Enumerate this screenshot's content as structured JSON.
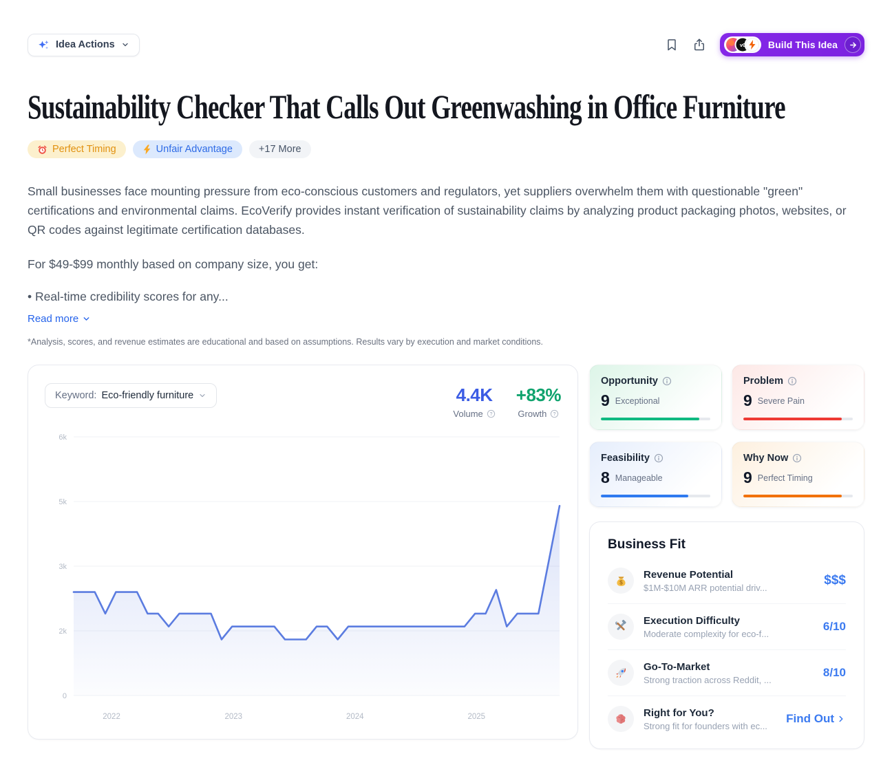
{
  "header": {
    "idea_actions_label": "Idea Actions",
    "build_button_label": "Build This Idea"
  },
  "title": "Sustainability Checker That Calls Out Greenwashing in Office Furniture",
  "tags": [
    {
      "label": "Perfect Timing",
      "icon": "alarm-clock-icon"
    },
    {
      "label": "Unfair Advantage",
      "icon": "lightning-icon"
    },
    {
      "label": "+17 More",
      "icon": null
    }
  ],
  "description": {
    "paragraph": "Small businesses face mounting pressure from eco-conscious customers and regulators, yet suppliers overwhelm them with questionable \"green\" certifications and environmental claims. EcoVerify provides instant verification of sustainability claims by analyzing product packaging photos, websites, or QR codes against legitimate certification databases.",
    "pricing_line": "For $49-$99 monthly based on company size, you get:",
    "bullet": "• Real-time credibility scores for any...",
    "read_more_label": "Read more",
    "disclaimer": "*Analysis, scores, and revenue estimates are educational and based on assumptions. Results vary by execution and market conditions."
  },
  "chart_panel": {
    "keyword_label": "Keyword:",
    "keyword_value": "Eco-friendly furniture",
    "volume": {
      "value": "4.4K",
      "label": "Volume",
      "color": "#3b5ce4"
    },
    "growth": {
      "value": "+83%",
      "label": "Growth",
      "color": "#10a36e"
    }
  },
  "chart_data": {
    "type": "area",
    "title": "Keyword search volume trend",
    "x_unit": "month",
    "x_tick_labels": [
      {
        "label": "2022",
        "pos": 0.078
      },
      {
        "label": "2023",
        "pos": 0.329
      },
      {
        "label": "2024",
        "pos": 0.579
      },
      {
        "label": "2025",
        "pos": 0.829
      }
    ],
    "ylim_k": [
      0,
      6
    ],
    "y_gridlines": {
      "values_k": [
        6,
        4.5,
        3,
        1.5,
        0
      ],
      "labels": [
        "6k",
        "5k",
        "3k",
        "2k",
        "0"
      ]
    },
    "values_k": [
      2.4,
      2.4,
      2.4,
      1.9,
      2.4,
      2.4,
      2.4,
      1.9,
      1.9,
      1.6,
      1.9,
      1.9,
      1.9,
      1.9,
      1.3,
      1.6,
      1.6,
      1.6,
      1.6,
      1.6,
      1.3,
      1.3,
      1.3,
      1.6,
      1.6,
      1.3,
      1.6,
      1.6,
      1.6,
      1.6,
      1.6,
      1.6,
      1.6,
      1.6,
      1.6,
      1.6,
      1.6,
      1.6,
      1.9,
      1.9,
      2.45,
      1.6,
      1.9,
      1.9,
      1.9,
      3.15,
      4.4
    ],
    "line_color": "#5b7ce0",
    "fill_color": "#5b7ce0",
    "grid": true,
    "legend": false
  },
  "scores": [
    {
      "label": "Opportunity",
      "score": 9,
      "max": 10,
      "descriptor": "Exceptional",
      "bar_color": "#10b981",
      "bg_tint": "#ddf5e8"
    },
    {
      "label": "Problem",
      "score": 9,
      "max": 10,
      "descriptor": "Severe Pain",
      "bar_color": "#ee3a34",
      "bg_tint": "#fde8e6"
    },
    {
      "label": "Feasibility",
      "score": 8,
      "max": 10,
      "descriptor": "Manageable",
      "bar_color": "#2f7af0",
      "bg_tint": "#e6eefc"
    },
    {
      "label": "Why Now",
      "score": 9,
      "max": 10,
      "descriptor": "Perfect Timing",
      "bar_color": "#f2720c",
      "bg_tint": "#fdf0df"
    }
  ],
  "business_fit": {
    "title": "Business Fit",
    "value_color": "#3b7af0",
    "rows": [
      {
        "icon": "money-bag-icon",
        "title": "Revenue Potential",
        "desc": "$1M-$10M ARR potential driv...",
        "value": "$$$"
      },
      {
        "icon": "tools-icon",
        "title": "Execution Difficulty",
        "desc": "Moderate complexity for eco-f...",
        "value": "6/10"
      },
      {
        "icon": "rocket-icon",
        "title": "Go-To-Market",
        "desc": "Strong traction across Reddit, ...",
        "value": "8/10"
      },
      {
        "icon": "brain-icon",
        "title": "Right for You?",
        "desc": "Strong fit for founders with ec...",
        "value": "Find Out"
      }
    ]
  }
}
